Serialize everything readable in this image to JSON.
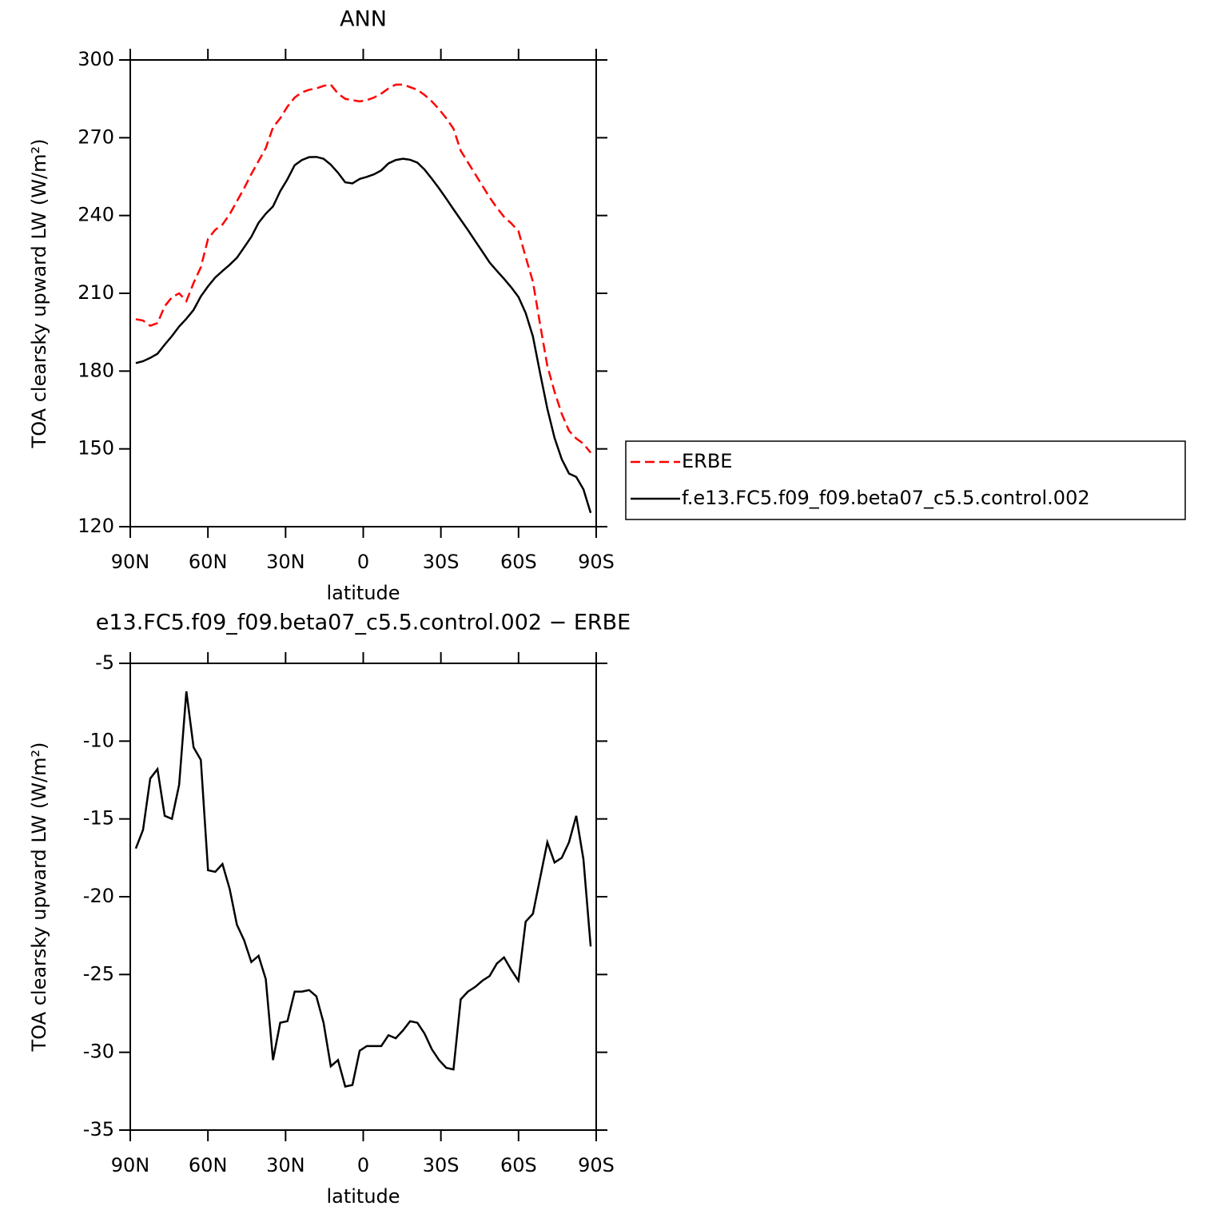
{
  "chart_data": [
    {
      "type": "line",
      "title": "ANN",
      "xlabel": "latitude",
      "ylabel": "TOA clearsky upward LW (W/m²)",
      "xlim": [
        90,
        -90
      ],
      "xticks": [
        {
          "value": 90,
          "label": "90N"
        },
        {
          "value": 60,
          "label": "60N"
        },
        {
          "value": 30,
          "label": "30N"
        },
        0,
        {
          "value": -30,
          "label": "30S"
        },
        {
          "value": -60,
          "label": "60S"
        },
        {
          "value": -90,
          "label": "90S"
        }
      ],
      "ylim": [
        120,
        300
      ],
      "yticks": [
        120,
        150,
        180,
        210,
        240,
        270,
        300
      ],
      "legend": "right",
      "x": [
        87.86,
        85.07,
        82.28,
        79.49,
        76.7,
        73.91,
        71.12,
        68.33,
        65.54,
        62.75,
        59.96,
        57.17,
        54.38,
        51.6,
        48.81,
        46.02,
        43.23,
        40.44,
        37.65,
        34.86,
        32.07,
        29.28,
        26.49,
        23.7,
        20.91,
        18.12,
        15.33,
        12.54,
        9.75,
        6.96,
        4.17,
        1.38,
        -1.38,
        -4.17,
        -6.96,
        -9.75,
        -12.54,
        -15.33,
        -18.12,
        -20.91,
        -23.7,
        -26.49,
        -29.28,
        -32.07,
        -34.86,
        -37.65,
        -40.44,
        -43.23,
        -46.02,
        -48.81,
        -51.6,
        -54.38,
        -57.17,
        -59.96,
        -62.75,
        -65.54,
        -68.33,
        -71.12,
        -73.91,
        -76.7,
        -79.49,
        -82.28,
        -85.07,
        -87.86
      ],
      "series": [
        {
          "name": "ERBE",
          "color": "#ff0000",
          "dash": true,
          "values": [
            200,
            199.5,
            197.5,
            198.5,
            205,
            208.5,
            210,
            207,
            214,
            220,
            231,
            234.5,
            236.5,
            240.5,
            245.5,
            250.5,
            256,
            261,
            266,
            274,
            277.5,
            282,
            285.5,
            287.5,
            288.5,
            289,
            290,
            290.5,
            287,
            285,
            284.5,
            284,
            284.5,
            285.5,
            287,
            289,
            290.5,
            290.5,
            289.5,
            288.5,
            286.5,
            284,
            281,
            277.5,
            273.5,
            265,
            260.5,
            256,
            251.5,
            247,
            243,
            239.5,
            237,
            234,
            224,
            214.5,
            198,
            182,
            172,
            163.5,
            157,
            154,
            152,
            148.5
          ]
        },
        {
          "name": "f.e13.FC5.f09_f09.beta07_c5.5.control.002",
          "color": "#000000",
          "dash": false,
          "values": [
            183.1,
            183.8,
            185.1,
            186.7,
            190.2,
            193.5,
            197.2,
            200.2,
            203.6,
            208.8,
            212.7,
            216.1,
            218.6,
            221.0,
            223.7,
            227.7,
            231.8,
            237.2,
            240.7,
            243.5,
            249.4,
            254.0,
            259.4,
            261.4,
            262.5,
            262.6,
            261.9,
            259.6,
            256.5,
            252.8,
            252.4,
            254.1,
            254.9,
            255.9,
            257.4,
            260.1,
            261.4,
            261.9,
            261.5,
            260.4,
            257.7,
            254.2,
            250.5,
            246.5,
            242.4,
            238.4,
            234.4,
            230.2,
            226.1,
            221.9,
            218.7,
            215.6,
            212.3,
            208.6,
            202.4,
            193.4,
            179.2,
            165.5,
            154.2,
            146.0,
            140.5,
            139.2,
            134.4,
            125.3
          ]
        }
      ]
    },
    {
      "type": "line",
      "title": "e13.FC5.f09_f09.beta07_c5.5.control.002 − ERBE",
      "xlabel": "latitude",
      "ylabel": "TOA clearsky upward LW (W/m²)",
      "xlim": [
        90,
        -90
      ],
      "xticks": [
        {
          "value": 90,
          "label": "90N"
        },
        {
          "value": 60,
          "label": "60N"
        },
        {
          "value": 30,
          "label": "30N"
        },
        0,
        {
          "value": -30,
          "label": "30S"
        },
        {
          "value": -60,
          "label": "60S"
        },
        {
          "value": -90,
          "label": "90S"
        }
      ],
      "ylim": [
        -35,
        -5
      ],
      "yticks": [
        -35,
        -30,
        -25,
        -20,
        -15,
        -10,
        -5
      ],
      "x": [
        87.86,
        85.07,
        82.28,
        79.49,
        76.7,
        73.91,
        71.12,
        68.33,
        65.54,
        62.75,
        59.96,
        57.17,
        54.38,
        51.6,
        48.81,
        46.02,
        43.23,
        40.44,
        37.65,
        34.86,
        32.07,
        29.28,
        26.49,
        23.7,
        20.91,
        18.12,
        15.33,
        12.54,
        9.75,
        6.96,
        4.17,
        1.38,
        -1.38,
        -4.17,
        -6.96,
        -9.75,
        -12.54,
        -15.33,
        -18.12,
        -20.91,
        -23.7,
        -26.49,
        -29.28,
        -32.07,
        -34.86,
        -37.65,
        -40.44,
        -43.23,
        -46.02,
        -48.81,
        -51.6,
        -54.38,
        -57.17,
        -59.96,
        -62.75,
        -65.54,
        -68.33,
        -71.12,
        -73.91,
        -76.7,
        -79.49,
        -82.28,
        -85.07,
        -87.86
      ],
      "color": "#000000",
      "values": [
        -16.9,
        -15.7,
        -12.4,
        -11.8,
        -14.8,
        -15.0,
        -12.8,
        -6.8,
        -10.4,
        -11.2,
        -18.3,
        -18.4,
        -17.9,
        -19.5,
        -21.8,
        -22.8,
        -24.2,
        -23.8,
        -25.3,
        -30.5,
        -28.1,
        -28.0,
        -26.1,
        -26.1,
        -26.0,
        -26.4,
        -28.1,
        -30.9,
        -30.5,
        -32.2,
        -32.1,
        -29.9,
        -29.6,
        -29.6,
        -29.6,
        -28.9,
        -29.1,
        -28.6,
        -28.0,
        -28.1,
        -28.8,
        -29.8,
        -30.5,
        -31.0,
        -31.1,
        -26.6,
        -26.1,
        -25.8,
        -25.4,
        -25.1,
        -24.3,
        -23.9,
        -24.7,
        -25.4,
        -21.6,
        -21.1,
        -18.8,
        -16.5,
        -17.8,
        -17.5,
        -16.5,
        -14.8,
        -17.6,
        -23.2
      ]
    }
  ]
}
